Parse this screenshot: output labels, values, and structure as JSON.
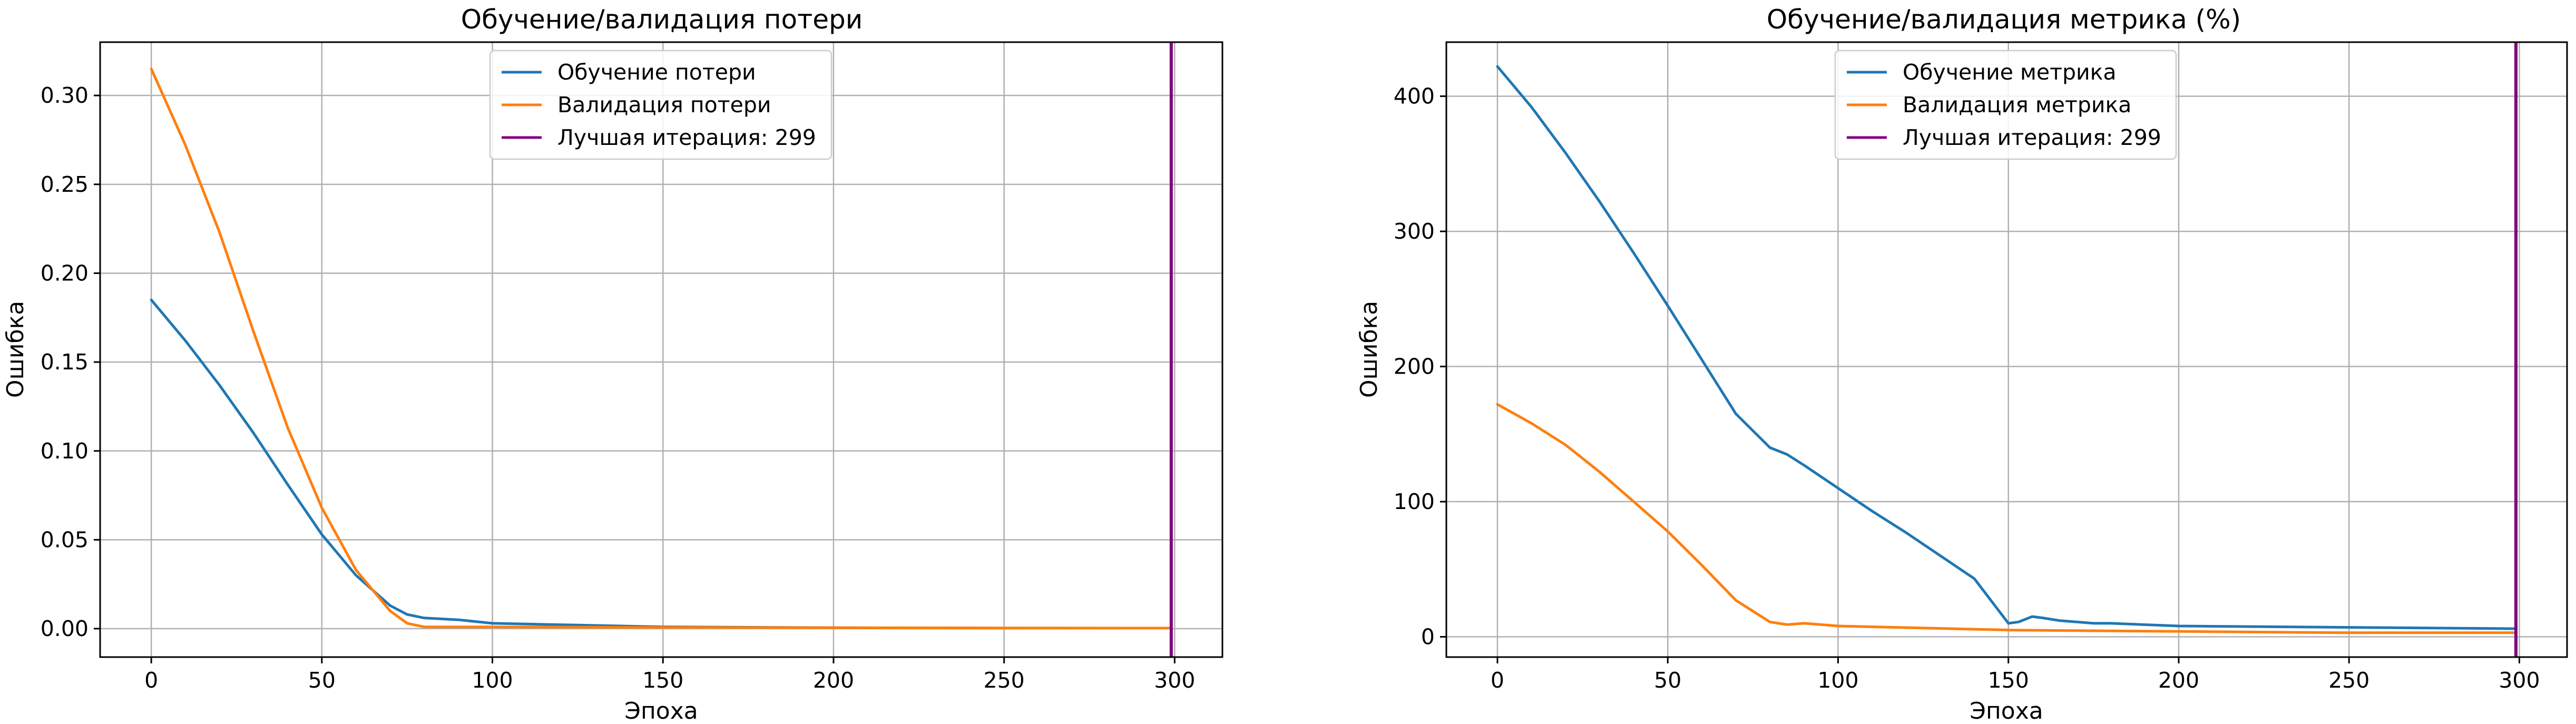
{
  "chart_data": [
    {
      "type": "line",
      "title": "Обучение/валидация потери",
      "xlabel": "Эпоха",
      "ylabel": "Ошибка",
      "xlim": [
        -15,
        314
      ],
      "ylim": [
        -0.016,
        0.33
      ],
      "xticks": [
        0,
        50,
        100,
        150,
        200,
        250,
        300
      ],
      "yticks": [
        0.0,
        0.05,
        0.1,
        0.15,
        0.2,
        0.25,
        0.3
      ],
      "ytick_labels": [
        "0.00",
        "0.05",
        "0.10",
        "0.15",
        "0.20",
        "0.25",
        "0.30"
      ],
      "grid": true,
      "legend_position": "top-center",
      "series": [
        {
          "name": "Обучение потери",
          "color": "#1f77b4",
          "x": [
            0,
            10,
            20,
            30,
            40,
            50,
            60,
            70,
            75,
            80,
            90,
            100,
            125,
            150,
            200,
            250,
            299
          ],
          "y": [
            0.185,
            0.162,
            0.137,
            0.11,
            0.081,
            0.053,
            0.03,
            0.013,
            0.008,
            0.006,
            0.005,
            0.003,
            0.002,
            0.001,
            0.0005,
            0.0003,
            0.0003
          ]
        },
        {
          "name": "Валидация потери",
          "color": "#ff7f0e",
          "x": [
            0,
            10,
            20,
            30,
            40,
            50,
            60,
            70,
            75,
            80,
            90,
            100,
            150,
            200,
            250,
            299
          ],
          "y": [
            0.315,
            0.272,
            0.223,
            0.167,
            0.113,
            0.068,
            0.033,
            0.01,
            0.003,
            0.001,
            0.001,
            0.001,
            0.0007,
            0.0005,
            0.0004,
            0.0003
          ]
        }
      ],
      "vline": {
        "name": "Лучшая итерация: 299",
        "x": 299,
        "color": "#800080"
      }
    },
    {
      "type": "line",
      "title": "Обучение/валидация метрика (%)",
      "xlabel": "Эпоха",
      "ylabel": "Ошибка",
      "xlim": [
        -15,
        314
      ],
      "ylim": [
        -15,
        440
      ],
      "xticks": [
        0,
        50,
        100,
        150,
        200,
        250,
        300
      ],
      "yticks": [
        0,
        100,
        200,
        300,
        400
      ],
      "ytick_labels": [
        "0",
        "100",
        "200",
        "300",
        "400"
      ],
      "grid": true,
      "legend_position": "top-center",
      "series": [
        {
          "name": "Обучение метрика",
          "color": "#1f77b4",
          "x": [
            0,
            10,
            20,
            30,
            40,
            50,
            60,
            70,
            80,
            85,
            90,
            100,
            110,
            120,
            130,
            140,
            150,
            153,
            157,
            160,
            165,
            170,
            175,
            180,
            200,
            250,
            299
          ],
          "y": [
            422,
            392,
            358,
            322,
            284,
            245,
            205,
            165,
            140,
            135,
            127,
            110,
            93,
            77,
            60,
            43,
            10,
            11,
            15,
            14,
            12,
            11,
            10,
            10,
            8,
            7,
            6
          ]
        },
        {
          "name": "Валидация метрика",
          "color": "#ff7f0e",
          "x": [
            0,
            10,
            20,
            30,
            40,
            50,
            60,
            70,
            80,
            85,
            90,
            95,
            100,
            150,
            200,
            250,
            299
          ],
          "y": [
            172,
            158,
            142,
            122,
            100,
            78,
            53,
            27,
            11,
            9,
            10,
            9,
            8,
            5,
            4,
            3,
            3
          ]
        }
      ],
      "vline": {
        "name": "Лучшая итерация: 299",
        "x": 299,
        "color": "#800080"
      }
    }
  ]
}
